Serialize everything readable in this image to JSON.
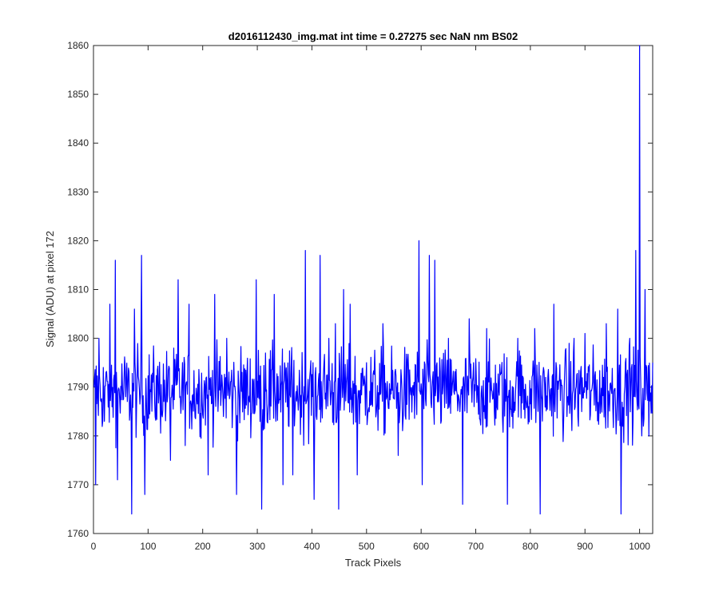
{
  "chart_data": {
    "type": "line",
    "title": "d2016112430_img.mat int time = 0.27275 sec  NaN nm BS02",
    "xlabel": "Track Pixels",
    "ylabel": "Signal (ADU) at pixel 172",
    "xlim": [
      0,
      1024
    ],
    "ylim": [
      1760,
      1860
    ],
    "xticks": [
      0,
      100,
      200,
      300,
      400,
      500,
      600,
      700,
      800,
      900,
      1000
    ],
    "yticks": [
      1760,
      1770,
      1780,
      1790,
      1800,
      1810,
      1820,
      1830,
      1840,
      1850,
      1860
    ],
    "grid": false,
    "legend": "none",
    "series": [
      {
        "color": "#0000ff",
        "x_start": 1,
        "x_step": 1,
        "points": 1024,
        "baseline": 1789,
        "values_sampled": [
          [
            1,
            1790
          ],
          [
            4,
            1770
          ],
          [
            10,
            1800
          ],
          [
            20,
            1783
          ],
          [
            30,
            1807
          ],
          [
            40,
            1816
          ],
          [
            44,
            1771
          ],
          [
            70,
            1764
          ],
          [
            75,
            1806
          ],
          [
            88,
            1817
          ],
          [
            94,
            1768
          ],
          [
            141,
            1775
          ],
          [
            155,
            1812
          ],
          [
            175,
            1807
          ],
          [
            210,
            1772
          ],
          [
            222,
            1809
          ],
          [
            244,
            1800
          ],
          [
            262,
            1768
          ],
          [
            298,
            1812
          ],
          [
            308,
            1765
          ],
          [
            315,
            1797
          ],
          [
            331,
            1809
          ],
          [
            347,
            1770
          ],
          [
            365,
            1772
          ],
          [
            388,
            1818
          ],
          [
            404,
            1767
          ],
          [
            415,
            1817
          ],
          [
            431,
            1800
          ],
          [
            443,
            1803
          ],
          [
            449,
            1765
          ],
          [
            458,
            1810
          ],
          [
            470,
            1807
          ],
          [
            483,
            1772
          ],
          [
            500,
            1795
          ],
          [
            530,
            1803
          ],
          [
            558,
            1776
          ],
          [
            596,
            1820
          ],
          [
            602,
            1770
          ],
          [
            615,
            1817
          ],
          [
            625,
            1816
          ],
          [
            650,
            1800
          ],
          [
            676,
            1766
          ],
          [
            688,
            1804
          ],
          [
            720,
            1802
          ],
          [
            758,
            1766
          ],
          [
            777,
            1800
          ],
          [
            808,
            1802
          ],
          [
            818,
            1764
          ],
          [
            843,
            1807
          ],
          [
            880,
            1800
          ],
          [
            900,
            1801
          ],
          [
            939,
            1803
          ],
          [
            960,
            1806
          ],
          [
            966,
            1764
          ],
          [
            982,
            1800
          ],
          [
            993,
            1818
          ],
          [
            1000,
            1860
          ],
          [
            1004,
            1780
          ],
          [
            1010,
            1810
          ],
          [
            1017,
            1780
          ],
          [
            1024,
            1795
          ]
        ]
      }
    ]
  }
}
